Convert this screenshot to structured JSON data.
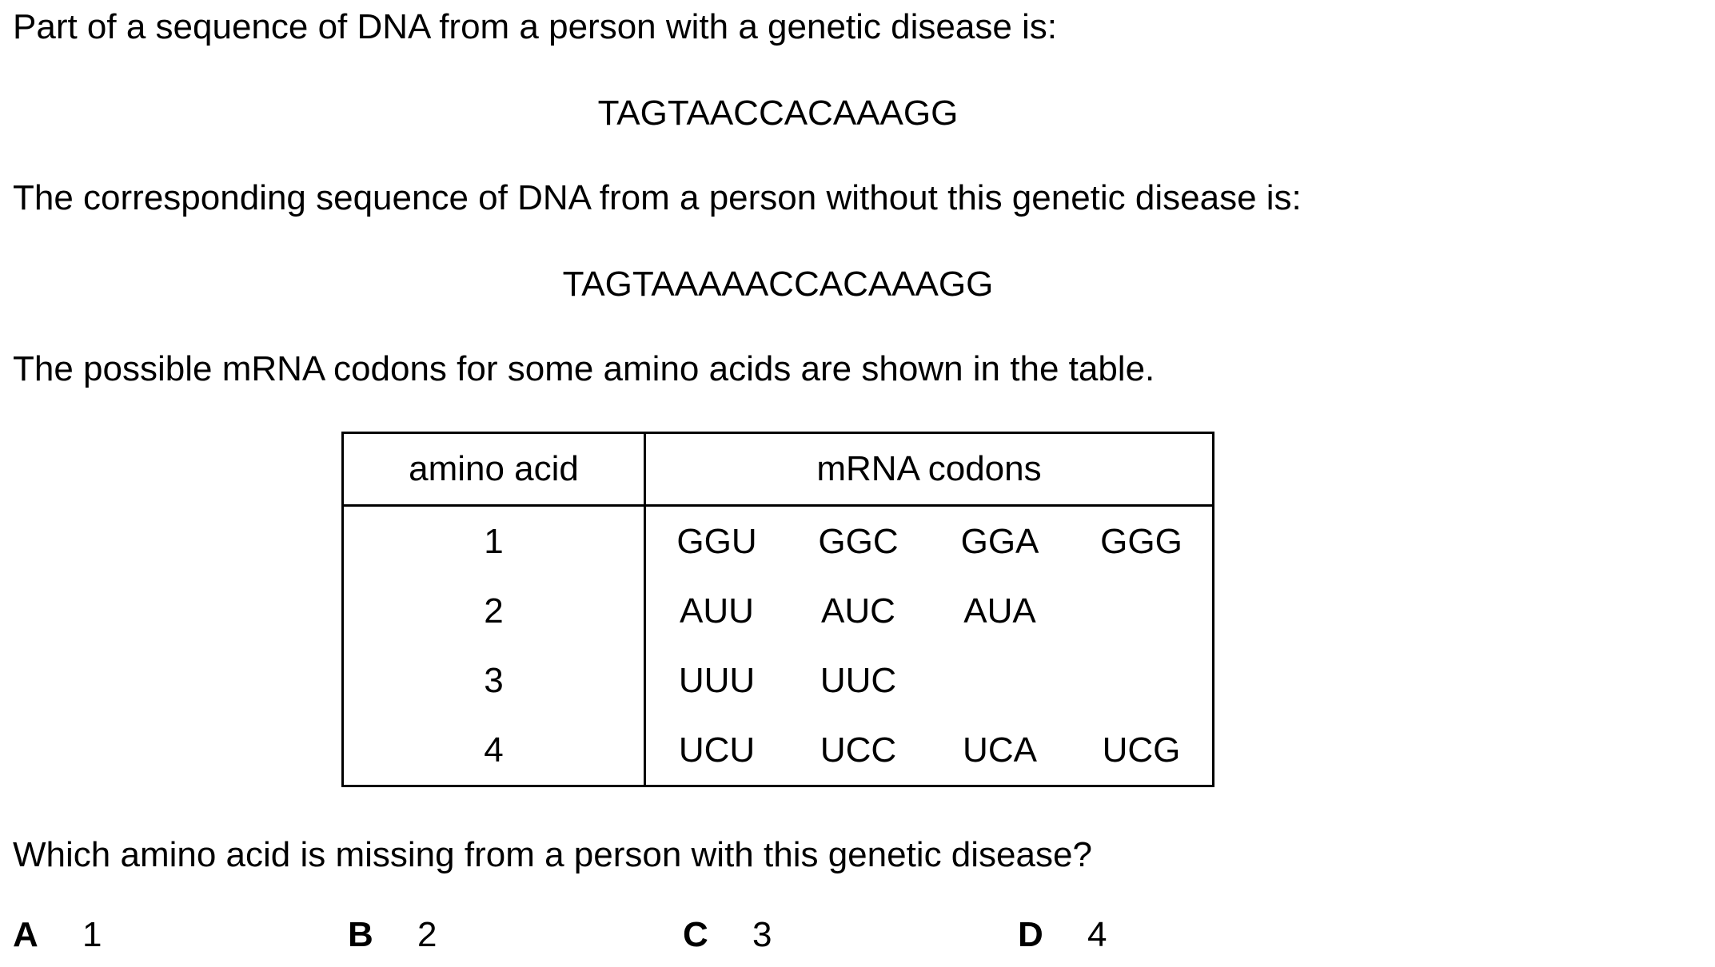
{
  "question": {
    "intro_disease": "Part of a sequence of DNA from a person with a genetic disease is:",
    "seq_disease": "TAGTAACCACAAAGG",
    "intro_normal": "The corresponding sequence of DNA from a person without this genetic disease is:",
    "seq_normal": "TAGTAAAAACCACAAAGG",
    "table_intro": "The possible mRNA codons for some amino acids are shown in the table.",
    "prompt": "Which amino acid is missing from a person with this genetic disease?"
  },
  "table": {
    "headers": [
      "amino acid",
      "mRNA codons"
    ],
    "rows": [
      {
        "amino_acid": "1",
        "codons": [
          "GGU",
          "GGC",
          "GGA",
          "GGG"
        ]
      },
      {
        "amino_acid": "2",
        "codons": [
          "AUU",
          "AUC",
          "AUA",
          ""
        ]
      },
      {
        "amino_acid": "3",
        "codons": [
          "UUU",
          "UUC",
          "",
          ""
        ]
      },
      {
        "amino_acid": "4",
        "codons": [
          "UCU",
          "UCC",
          "UCA",
          "UCG"
        ]
      }
    ]
  },
  "options": [
    {
      "letter": "A",
      "value": "1"
    },
    {
      "letter": "B",
      "value": "2"
    },
    {
      "letter": "C",
      "value": "3"
    },
    {
      "letter": "D",
      "value": "4"
    }
  ]
}
